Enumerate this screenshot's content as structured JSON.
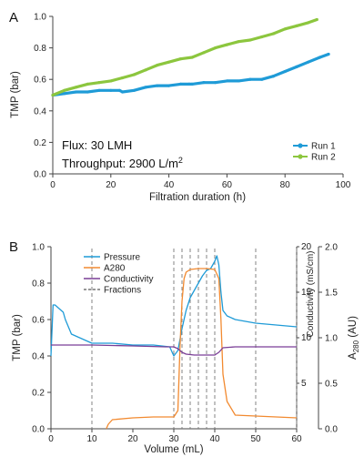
{
  "chart_data": [
    {
      "panel_label": "A",
      "type": "line",
      "xlabel": "Filtration duration (h)",
      "ylabel": "TMP (bar)",
      "xlim": [
        0,
        100
      ],
      "ylim": [
        0,
        1.0
      ],
      "x_ticks": [
        "0",
        "20",
        "40",
        "60",
        "80",
        "100"
      ],
      "y_ticks": [
        "0.0",
        "0.2",
        "0.4",
        "0.6",
        "0.8",
        "1.0"
      ],
      "legend_position": "bottom-right",
      "annotations": {
        "flux": "Flux: 30 LMH",
        "throughput": "Throughput: 2900 L/m",
        "throughput_sup": "2"
      },
      "series": [
        {
          "name": "Run 1",
          "color": "#1f9bd7",
          "x": [
            0,
            4,
            8,
            12,
            16,
            20,
            23,
            24,
            28,
            32,
            36,
            40,
            44,
            47,
            48,
            52,
            56,
            60,
            64,
            68,
            72,
            76,
            80,
            84,
            88,
            92,
            95
          ],
          "y": [
            0.5,
            0.51,
            0.52,
            0.52,
            0.53,
            0.53,
            0.53,
            0.52,
            0.53,
            0.55,
            0.56,
            0.56,
            0.57,
            0.57,
            0.57,
            0.58,
            0.58,
            0.59,
            0.59,
            0.6,
            0.6,
            0.62,
            0.65,
            0.68,
            0.71,
            0.74,
            0.76
          ]
        },
        {
          "name": "Run 2",
          "color": "#8cc63e",
          "x": [
            0,
            4,
            8,
            12,
            16,
            20,
            24,
            28,
            32,
            36,
            40,
            44,
            48,
            52,
            56,
            60,
            64,
            68,
            72,
            76,
            80,
            84,
            88,
            91
          ],
          "y": [
            0.5,
            0.53,
            0.55,
            0.57,
            0.58,
            0.59,
            0.61,
            0.63,
            0.66,
            0.69,
            0.71,
            0.73,
            0.74,
            0.77,
            0.8,
            0.82,
            0.84,
            0.85,
            0.87,
            0.89,
            0.92,
            0.94,
            0.96,
            0.98
          ]
        }
      ]
    },
    {
      "panel_label": "B",
      "type": "line",
      "xlabel": "Volume (mL)",
      "ylabel": "TMP (bar)",
      "y2label": "Conductivity (mS/cm)",
      "y3label": "A",
      "y3label_sub": "280",
      "y3label_unit": " (AU)",
      "xlim": [
        0,
        60
      ],
      "ylim": [
        0,
        1.0
      ],
      "y2lim": [
        0,
        20
      ],
      "y3lim": [
        0,
        2.0
      ],
      "x_ticks": [
        "0",
        "10",
        "20",
        "30",
        "40",
        "50",
        "60"
      ],
      "y_ticks": [
        "0.0",
        "0.2",
        "0.4",
        "0.6",
        "0.8",
        "1.0"
      ],
      "y2_ticks": [
        "5",
        "10",
        "15",
        "20"
      ],
      "y3_ticks": [
        "0.0",
        "0.5",
        "1.0",
        "1.5",
        "2.0"
      ],
      "legend_position": "top-left",
      "legend": [
        "Pressure",
        "A280",
        "Conductivity",
        "Fractions"
      ],
      "fractions": [
        10,
        30,
        32,
        34,
        36,
        38,
        40,
        50,
        60
      ],
      "series": [
        {
          "name": "Pressure",
          "axis": "left",
          "color": "#1f9bd7",
          "x": [
            0,
            0.5,
            1,
            2,
            3,
            3.5,
            5,
            7,
            10,
            15,
            20,
            25,
            29,
            30,
            31,
            32,
            33,
            34,
            35,
            36,
            37,
            38,
            39,
            40,
            40.5,
            41,
            41.5,
            42,
            43,
            45,
            50,
            55,
            60
          ],
          "y": [
            0.4,
            0.68,
            0.68,
            0.66,
            0.64,
            0.6,
            0.52,
            0.5,
            0.47,
            0.47,
            0.46,
            0.46,
            0.45,
            0.4,
            0.43,
            0.55,
            0.65,
            0.72,
            0.76,
            0.8,
            0.84,
            0.87,
            0.88,
            0.92,
            0.95,
            0.9,
            0.75,
            0.65,
            0.62,
            0.6,
            0.58,
            0.57,
            0.56
          ]
        },
        {
          "name": "A280",
          "axis": "right",
          "color": "#f28a30",
          "x": [
            13.5,
            14,
            15,
            20,
            25,
            30,
            31,
            31.5,
            32,
            32.5,
            33,
            34,
            36,
            38,
            40,
            41,
            41.5,
            42,
            43,
            45,
            50,
            55,
            60
          ],
          "y": [
            0.0,
            0.05,
            0.1,
            0.12,
            0.13,
            0.13,
            0.2,
            0.9,
            1.4,
            1.65,
            1.72,
            1.75,
            1.76,
            1.76,
            1.75,
            1.65,
            1.2,
            0.6,
            0.3,
            0.15,
            0.14,
            0.13,
            0.12
          ]
        },
        {
          "name": "Conductivity",
          "axis": "right2",
          "color": "#7a3e96",
          "x": [
            0,
            10,
            20,
            28,
            30,
            31,
            32,
            33,
            35,
            38,
            40,
            41,
            42,
            45,
            50,
            60
          ],
          "y": [
            9.2,
            9.2,
            9.1,
            9.0,
            9.0,
            8.8,
            8.4,
            8.2,
            8.1,
            8.1,
            8.1,
            8.4,
            8.9,
            9.0,
            9.0,
            9.0
          ]
        }
      ]
    }
  ]
}
